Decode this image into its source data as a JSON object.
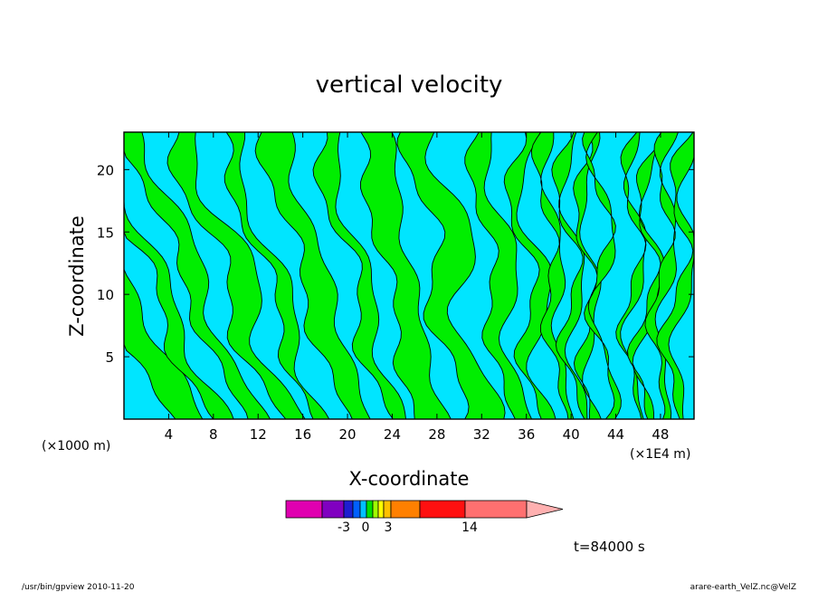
{
  "chart_data": {
    "type": "heatmap",
    "title": "vertical velocity",
    "xlabel": "X-coordinate",
    "ylabel": "Z-coordinate",
    "x_unit_label": "(×1000 m)",
    "x_scale_label": "(×1E4 m)",
    "x_ticks": [
      4,
      8,
      12,
      16,
      20,
      24,
      28,
      32,
      36,
      40,
      44,
      48
    ],
    "y_ticks": [
      5,
      10,
      15,
      20
    ],
    "xlim": [
      0,
      51
    ],
    "ylim": [
      0,
      23
    ],
    "grid": false,
    "contour_fill_colors": {
      "negative_small": "#00e5ff",
      "positive_small": "#00ee00"
    },
    "colorbar": {
      "tick_labels": [
        "-3",
        "0",
        "3",
        "14"
      ],
      "tick_values": [
        -3,
        0,
        3,
        14
      ],
      "colors": [
        "#e000b0",
        "#8000c0",
        "#1e1ed0",
        "#0060ff",
        "#00c0ff",
        "#00e000",
        "#a0ff00",
        "#ffff00",
        "#ffc000",
        "#ff8000",
        "#ff1010",
        "#ff7070",
        "#ffb0b0"
      ]
    },
    "time_label": "t=84000 s"
  },
  "footer": {
    "left": "/usr/bin/gpview   2010-11-20",
    "right": "arare-earth_VelZ.nc@VelZ"
  }
}
